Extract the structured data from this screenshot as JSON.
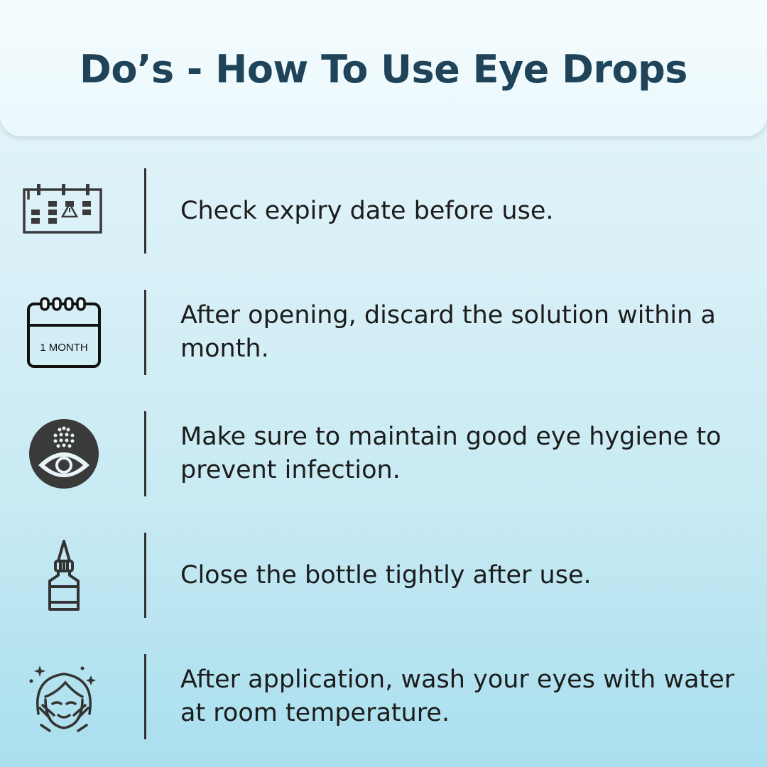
{
  "title": "Do’s - How To Use Eye Drops",
  "items": [
    {
      "icon": "calendar-warning-icon",
      "text": "Check expiry date before use."
    },
    {
      "icon": "calendar-month-icon",
      "icon_label": "1 MONTH",
      "text": "After opening, discard the solution within a month."
    },
    {
      "icon": "eye-drops-icon",
      "text": "Make sure to maintain good eye hygiene to prevent infection."
    },
    {
      "icon": "dropper-bottle-icon",
      "text": "Close the bottle tightly after use."
    },
    {
      "icon": "face-wash-icon",
      "text": "After application, wash your eyes with water at room temperature."
    }
  ],
  "colors": {
    "title": "#1f4459",
    "icon": "#333333"
  }
}
